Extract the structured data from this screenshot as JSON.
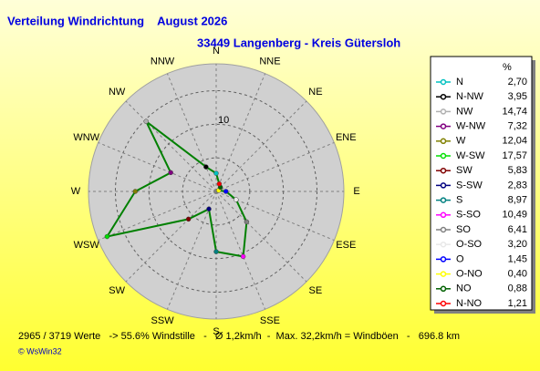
{
  "chart_data": {
    "type": "radar",
    "title": "Verteilung Windrichtung    August 2026",
    "subtitle": "33449 Langenberg - Kreis Gütersloh",
    "direction_labels": [
      "N",
      "NNE",
      "NE",
      "ENE",
      "E",
      "ESE",
      "SE",
      "SSE",
      "S",
      "SSW",
      "SW",
      "WSW",
      "W",
      "WNW",
      "NW",
      "NNW"
    ],
    "categories": [
      "N",
      "N-NW",
      "NW",
      "W-NW",
      "W",
      "W-SW",
      "SW",
      "S-SW",
      "S",
      "S-SO",
      "SO",
      "O-SO",
      "O",
      "O-NO",
      "NO",
      "N-NO"
    ],
    "values": [
      2.7,
      3.95,
      14.74,
      7.32,
      12.04,
      17.57,
      5.83,
      2.83,
      8.97,
      10.49,
      6.41,
      3.2,
      1.45,
      0.4,
      0.88,
      1.21
    ],
    "value_labels": [
      "2,70",
      "3,95",
      "14,74",
      "7,32",
      "12,04",
      "17,57",
      "5,83",
      "2,83",
      "8,97",
      "10,49",
      "6,41",
      "3,20",
      "1,45",
      "0,40",
      "0,88",
      "1,21"
    ],
    "colors": [
      "#00c0c0",
      "#000000",
      "#b0b0b0",
      "#800080",
      "#808000",
      "#00e000",
      "#800000",
      "#000080",
      "#008080",
      "#ff00ff",
      "#808080",
      "#e8e8e8",
      "#0000ff",
      "#ffff00",
      "#006000",
      "#ff0000"
    ],
    "line_color": "#008000",
    "value_header": "%",
    "rlim": [
      0,
      19
    ],
    "rgrid": [
      5,
      10,
      15
    ],
    "rticks": [
      10
    ],
    "footer": "2965 / 3719 Werte   -> 55.6% Windstille   -   Ø 1,2km/h  -  Max. 32,2km/h = Windböen   -   696.8 km",
    "copyright": "© WsWin32"
  }
}
